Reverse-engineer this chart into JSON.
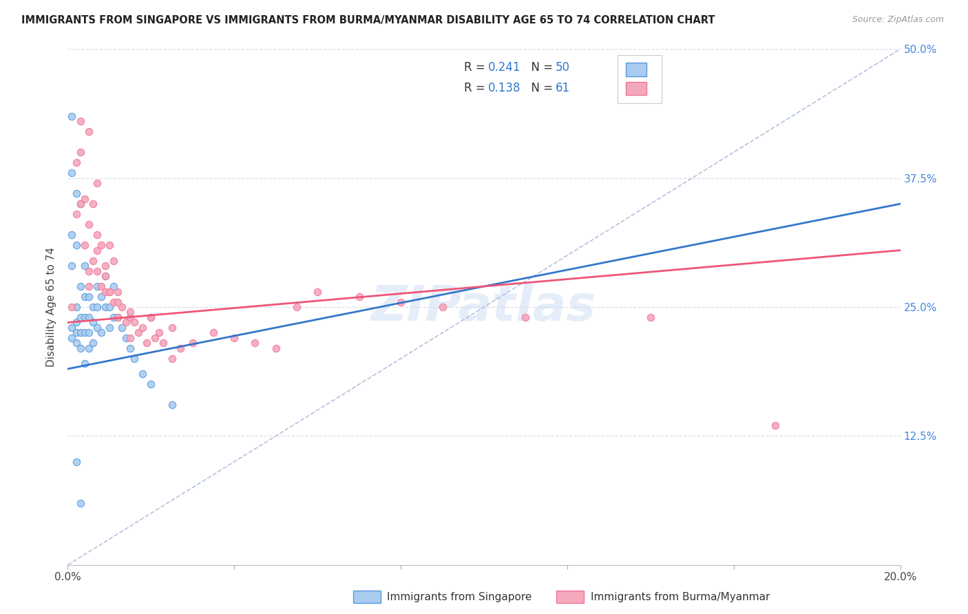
{
  "title": "IMMIGRANTS FROM SINGAPORE VS IMMIGRANTS FROM BURMA/MYANMAR DISABILITY AGE 65 TO 74 CORRELATION CHART",
  "source": "Source: ZipAtlas.com",
  "ylabel": "Disability Age 65 to 74",
  "xlim": [
    0.0,
    0.2
  ],
  "ylim": [
    0.0,
    0.5
  ],
  "singapore_R": 0.241,
  "singapore_N": 50,
  "burma_R": 0.138,
  "burma_N": 61,
  "singapore_color": "#aaccf0",
  "burma_color": "#f4a8bc",
  "singapore_edge_color": "#5599dd",
  "burma_edge_color": "#ee7799",
  "singapore_line_color": "#3377cc",
  "burma_line_color": "#ee5577",
  "diagonal_color": "#aabbdd",
  "legend_label_singapore": "Immigrants from Singapore",
  "legend_label_burma": "Immigrants from Burma/Myanmar",
  "watermark": "ZIPatlas",
  "singapore_x": [
    0.001,
    0.001,
    0.001,
    0.001,
    0.001,
    0.001,
    0.002,
    0.002,
    0.002,
    0.002,
    0.002,
    0.002,
    0.003,
    0.003,
    0.003,
    0.003,
    0.003,
    0.004,
    0.004,
    0.004,
    0.004,
    0.004,
    0.005,
    0.005,
    0.005,
    0.005,
    0.006,
    0.006,
    0.006,
    0.007,
    0.007,
    0.007,
    0.008,
    0.008,
    0.009,
    0.009,
    0.01,
    0.01,
    0.011,
    0.011,
    0.012,
    0.013,
    0.014,
    0.015,
    0.016,
    0.018,
    0.02,
    0.025,
    0.003,
    0.002
  ],
  "singapore_y": [
    0.435,
    0.38,
    0.32,
    0.29,
    0.23,
    0.22,
    0.36,
    0.31,
    0.25,
    0.235,
    0.225,
    0.215,
    0.35,
    0.27,
    0.24,
    0.225,
    0.21,
    0.29,
    0.26,
    0.24,
    0.225,
    0.195,
    0.26,
    0.24,
    0.225,
    0.21,
    0.25,
    0.235,
    0.215,
    0.27,
    0.25,
    0.23,
    0.26,
    0.225,
    0.28,
    0.25,
    0.25,
    0.23,
    0.27,
    0.24,
    0.24,
    0.23,
    0.22,
    0.21,
    0.2,
    0.185,
    0.175,
    0.155,
    0.06,
    0.1
  ],
  "burma_x": [
    0.001,
    0.002,
    0.002,
    0.003,
    0.003,
    0.004,
    0.004,
    0.005,
    0.005,
    0.005,
    0.006,
    0.006,
    0.007,
    0.007,
    0.007,
    0.008,
    0.008,
    0.009,
    0.009,
    0.01,
    0.01,
    0.011,
    0.011,
    0.012,
    0.012,
    0.013,
    0.014,
    0.015,
    0.015,
    0.016,
    0.017,
    0.018,
    0.019,
    0.02,
    0.021,
    0.022,
    0.023,
    0.025,
    0.027,
    0.03,
    0.035,
    0.04,
    0.045,
    0.05,
    0.055,
    0.06,
    0.07,
    0.08,
    0.09,
    0.11,
    0.14,
    0.17,
    0.003,
    0.005,
    0.007,
    0.009,
    0.01,
    0.012,
    0.015,
    0.02,
    0.025
  ],
  "burma_y": [
    0.25,
    0.39,
    0.34,
    0.4,
    0.35,
    0.355,
    0.31,
    0.33,
    0.285,
    0.27,
    0.35,
    0.295,
    0.37,
    0.32,
    0.285,
    0.31,
    0.27,
    0.29,
    0.265,
    0.31,
    0.265,
    0.295,
    0.255,
    0.265,
    0.24,
    0.25,
    0.235,
    0.24,
    0.22,
    0.235,
    0.225,
    0.23,
    0.215,
    0.24,
    0.22,
    0.225,
    0.215,
    0.2,
    0.21,
    0.215,
    0.225,
    0.22,
    0.215,
    0.21,
    0.25,
    0.265,
    0.26,
    0.255,
    0.25,
    0.24,
    0.24,
    0.135,
    0.43,
    0.42,
    0.305,
    0.28,
    0.265,
    0.255,
    0.245,
    0.24,
    0.23
  ]
}
